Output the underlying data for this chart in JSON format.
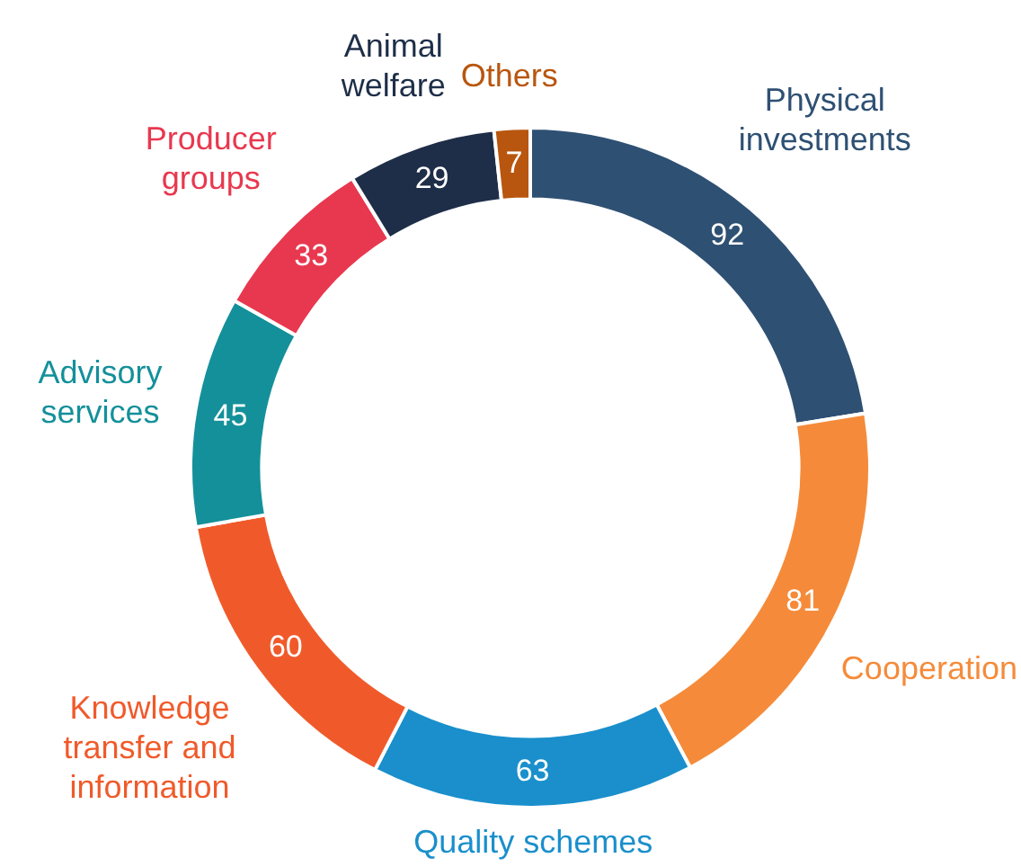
{
  "chart_data": {
    "type": "donut",
    "categories": [
      "Physical\ninvestments",
      "Cooperation",
      "Quality schemes",
      "Knowledge\ntransfer and\ninformation",
      "Advisory\nservices",
      "Producer\ngroups",
      "Animal\nwelfare",
      "Others"
    ],
    "values": [
      92,
      81,
      63,
      60,
      45,
      33,
      29,
      7
    ],
    "colors": [
      "#2e5073",
      "#f58b3a",
      "#1a8fcc",
      "#f05a2a",
      "#14909a",
      "#e8384f",
      "#1e2e48",
      "#b8560f"
    ],
    "data_labels": true,
    "legend": false
  }
}
